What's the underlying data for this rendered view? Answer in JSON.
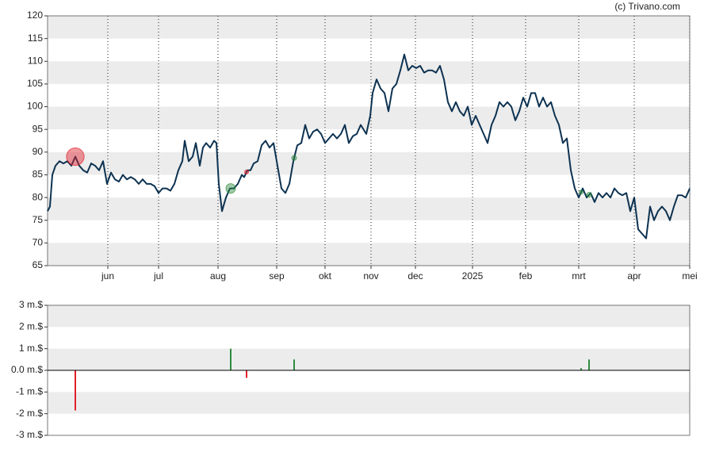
{
  "source": "(c) Trivano.com",
  "chart_data": [
    {
      "type": "line",
      "color": "#0d3251",
      "x": [
        0,
        1.5,
        3,
        5,
        7.5,
        10,
        12.5,
        15,
        17.5,
        20,
        22.5,
        25,
        27.5,
        30,
        32.5,
        35,
        37.5,
        40,
        42.5,
        45,
        47.5,
        50,
        52.5,
        55,
        57.5,
        60,
        62.5,
        65,
        67.5,
        70,
        72.5,
        75,
        77.5,
        80,
        82.5,
        85,
        86.5,
        89,
        91.5,
        93.5,
        96,
        98,
        100,
        102.5,
        105,
        106.5,
        108,
        110,
        112.5,
        115,
        117.5,
        120,
        122.5,
        124,
        126,
        128,
        130,
        132.5,
        135,
        137.5,
        140,
        142.5,
        145,
        147.5,
        150,
        152.5,
        155,
        157.5,
        160,
        162.5,
        165,
        167.5,
        170,
        172.5,
        175,
        177.5,
        180,
        182.5,
        185,
        187.5,
        190,
        192.5,
        195,
        197.5,
        201,
        203.5,
        205,
        207.5,
        210,
        212.5,
        215,
        217.5,
        220,
        222.5,
        225,
        227.5,
        230,
        232.5,
        235,
        237.5,
        240,
        242.5,
        245,
        247.5,
        250,
        252.5,
        255,
        257.5,
        260,
        262.5,
        265,
        267.5,
        270,
        272.5,
        275,
        277.5,
        280,
        282.5,
        285,
        287.5,
        290,
        292.5,
        295,
        297.5,
        300,
        302.5,
        305,
        307.5,
        310,
        312.5,
        315,
        317.5,
        320,
        322.5,
        325,
        327.5,
        330,
        332.5,
        335,
        337.5,
        340,
        342.5,
        345,
        347.5,
        350,
        352.5,
        355,
        357.5,
        360,
        362.5,
        365,
        367.5,
        370,
        372.5,
        375,
        377.5,
        380,
        382.5,
        385,
        387.5,
        390,
        392.5,
        395,
        397.5,
        400,
        402.5,
        405
      ],
      "values": [
        77,
        78,
        85,
        87,
        88,
        87.5,
        88,
        87,
        89,
        87,
        86,
        85.5,
        87.5,
        87,
        86,
        88,
        83,
        85.5,
        84,
        83.5,
        85,
        84,
        84.5,
        84,
        83,
        84,
        83,
        83,
        82.5,
        81,
        82,
        82,
        81.5,
        83,
        86,
        88,
        92.5,
        88,
        89,
        92,
        87,
        91,
        92,
        91,
        92.5,
        92,
        83,
        77,
        80,
        82,
        82,
        83,
        85,
        84.5,
        86,
        86,
        87.5,
        88,
        91.5,
        92.5,
        91,
        92,
        87,
        82,
        81,
        83,
        88,
        91.5,
        92,
        96,
        93,
        94.5,
        95,
        94,
        92,
        93,
        94,
        93,
        94,
        96,
        92,
        93.5,
        94,
        96,
        94,
        98,
        103,
        106,
        104,
        103,
        99,
        104,
        105,
        108,
        111.5,
        108,
        109,
        108.5,
        109,
        107.5,
        108,
        108,
        107.5,
        109,
        106,
        101,
        99,
        101,
        99,
        98,
        100,
        96,
        98,
        96,
        94,
        92,
        96,
        98,
        101,
        100,
        101,
        100,
        97,
        99,
        102,
        100,
        103,
        103,
        100,
        102,
        100,
        101,
        98,
        96,
        92,
        93,
        86,
        82,
        80,
        82,
        80,
        81,
        79,
        81,
        80,
        81,
        80,
        82,
        81,
        80.5,
        81,
        77,
        80,
        73,
        72,
        71,
        78,
        75,
        77,
        78,
        77,
        75,
        78,
        80.5,
        80.5,
        80,
        82
      ],
      "xlim": [
        0,
        405
      ],
      "xticks": [
        {
          "value": 38,
          "label": "jun"
        },
        {
          "value": 70,
          "label": "jul"
        },
        {
          "value": 107.5,
          "label": "aug"
        },
        {
          "value": 144.5,
          "label": "sep"
        },
        {
          "value": 175,
          "label": "okt"
        },
        {
          "value": 204,
          "label": "nov"
        },
        {
          "value": 232,
          "label": "dec"
        },
        {
          "value": 268,
          "label": "2025"
        },
        {
          "value": 301.5,
          "label": "feb"
        },
        {
          "value": 335,
          "label": "mrt"
        },
        {
          "value": 370,
          "label": "apr"
        },
        {
          "value": 405,
          "label": "mei"
        }
      ],
      "ylim": [
        65,
        120
      ],
      "yticks": [
        65,
        70,
        75,
        80,
        85,
        90,
        95,
        100,
        105,
        110,
        115,
        120
      ]
    },
    {
      "type": "bar",
      "positive_color": "#2e8b3e",
      "negative_color": "#e0202a",
      "x": [
        17.5,
        115.5,
        125.5,
        155.5,
        336.5,
        341.5
      ],
      "values": [
        -1.85,
        1.0,
        -0.35,
        0.5,
        0.1,
        0.5
      ],
      "xlim": [
        0,
        405
      ],
      "ylim": [
        -3,
        3
      ],
      "yticks": [
        {
          "value": -3,
          "label": "-3 m.$"
        },
        {
          "value": -2,
          "label": "-2 m.$"
        },
        {
          "value": -1,
          "label": "-1 m.$"
        },
        {
          "value": 0,
          "label": "0.0 m.$"
        },
        {
          "value": 1,
          "label": "1 m.$"
        },
        {
          "value": 2,
          "label": "2 m.$"
        },
        {
          "value": 3,
          "label": "3 m.$"
        }
      ]
    }
  ]
}
